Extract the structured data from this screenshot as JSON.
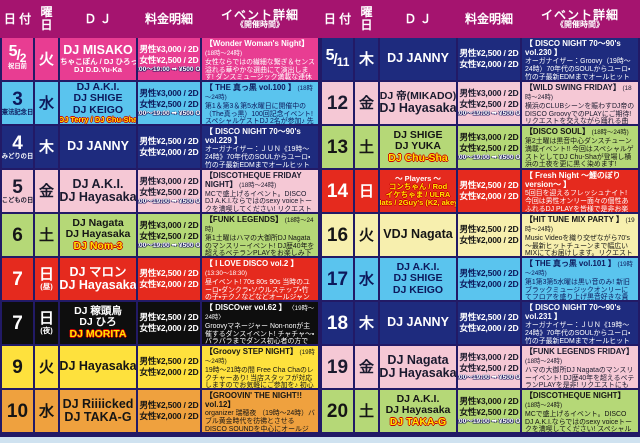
{
  "header": {
    "date": "日 付",
    "day": "曜日",
    "dj": "Ｄ Ｊ",
    "fee": "料金明細",
    "event": "イベント詳細",
    "event_sub": "《開催時間》"
  },
  "themes": {
    "pink": {
      "bg": "#e83d92",
      "fg": "#ffffff"
    },
    "blue": {
      "bg": "#5ac4ee",
      "fg": "#0d195c"
    },
    "navy": {
      "bg": "#1e2b7e",
      "fg": "#ffffff"
    },
    "lightpink": {
      "bg": "#f5c8d5",
      "fg": "#1a1a2e"
    },
    "green": {
      "bg": "#b5d877",
      "fg": "#151515"
    },
    "red": {
      "bg": "#e52a1e",
      "fg": "#ffffff"
    },
    "black": {
      "bg": "#0e0e0e",
      "fg": "#ffffff"
    },
    "yellow": {
      "bg": "#fee13d",
      "fg": "#151515"
    },
    "orange": {
      "bg": "#efa13e",
      "fg": "#151515"
    },
    "cream": {
      "bg": "#f7efae",
      "fg": "#151515"
    }
  },
  "tables": [
    {
      "side": "left",
      "rows": [
        {
          "theme": "pink",
          "date": {
            "num": "5",
            "num2": "2",
            "label": "祝日前"
          },
          "day": {
            "char": "火",
            "note": ""
          },
          "djs": [
            {
              "text": "DJ MISAKO",
              "size": "lg",
              "hl": false
            },
            {
              "text": "DJちゃこぼん / DJ ひろっち",
              "size": "sm",
              "hl": false
            },
            {
              "text": "DJ D.D.Yu-Ka",
              "size": "sm",
              "hl": false
            }
          ],
          "fee": {
            "male": "男性¥3,000 / 2D",
            "female": "女性¥2,500 / 2D",
            "off": "18:00～19:00 ➡ ¥500 OFF"
          },
          "event": {
            "title": "【Wonder Woman's Night】",
            "time": "(18時～24時)",
            "body": "女性ならではの繊細な繋ぎ＆センス溢れる華やかな選曲にて演出します! ダンスミュージック満載な連休前夜を皆様で是非お楽しみ下さい♪"
          }
        },
        {
          "theme": "blue",
          "date": {
            "num": "3",
            "num2": "",
            "label": "憲法記念日"
          },
          "day": {
            "char": "水",
            "note": ""
          },
          "djs": [
            {
              "text": "DJ A.K.I.",
              "size": "md",
              "hl": false
            },
            {
              "text": "DJ SHIGE",
              "size": "md",
              "hl": false
            },
            {
              "text": "DJ KEIGO",
              "size": "md",
              "hl": false
            },
            {
              "text": "DJ Terry / DJ Chu-Sha",
              "size": "sm",
              "hl": true
            }
          ],
          "fee": {
            "male": "男性¥3,000 / 2D",
            "female": "女性¥2,500 / 2D",
            "off": "18:00～19:00 ➡ ¥500 OFF"
          },
          "event": {
            "title": "【 THE 真っ黒 vol.100 】",
            "time": "(18時～24時)",
            "body": "第1＆第3＆第5水曜日に開催中の（The真っ黒）100回記念イベント! スペシャルゲストDJ 2名が参加♪ 先着順Special限定Mix CDプレゼントあり!"
          }
        },
        {
          "theme": "navy",
          "date": {
            "num": "4",
            "num2": "",
            "label": "みどりの日"
          },
          "day": {
            "char": "木",
            "note": ""
          },
          "djs": [
            {
              "text": "DJ JANNY",
              "size": "lg",
              "hl": false
            }
          ],
          "fee": {
            "male": "男性¥2,500 / 2D",
            "female": "女性¥2,000 / 2D",
            "off": ""
          },
          "event": {
            "title": "【 DISCO NIGHT 70～90's vol.229 】",
            "time": "",
            "body": "オーガナイザー：ＪＵＮ《19時～24時》70年代のSOULからユーロ・竹の子最新EDMまでオールヒットメドレー!"
          }
        },
        {
          "theme": "lightpink",
          "date": {
            "num": "5",
            "num2": "",
            "label": "こどもの日"
          },
          "day": {
            "char": "金",
            "note": ""
          },
          "djs": [
            {
              "text": "DJ A.K.I.",
              "size": "lg",
              "hl": false
            },
            {
              "text": "DJ Hayasaka",
              "size": "lg",
              "hl": false
            }
          ],
          "fee": {
            "male": "男性¥3,000 / 2D",
            "female": "女性¥2,500 / 2D",
            "off": "18:00～19:00 ➡ ¥500 OFF"
          },
          "event": {
            "title": "【DISCOTHEQUE FRIDAY NIGHT】",
            "time": "(18時～24時)",
            "body": "MCで盛上げるイベント。DISCO DJ A.K.I.ならではのsexy voiceトークを満喫してください! リクエストにも出来る限りお応えいたします♪"
          }
        },
        {
          "theme": "green",
          "date": {
            "num": "6",
            "num2": "",
            "label": ""
          },
          "day": {
            "char": "土",
            "note": ""
          },
          "djs": [
            {
              "text": "DJ Nagata",
              "size": "md",
              "hl": false
            },
            {
              "text": "DJ Hayasaka",
              "size": "md",
              "hl": false
            },
            {
              "text": "DJ Nom-3",
              "size": "md",
              "hl": true
            }
          ],
          "fee": {
            "male": "男性¥3,000 / 2D",
            "female": "女性¥2,500 / 2D",
            "off": "18:00～19:00 ➡ ¥500 OFF"
          },
          "event": {
            "title": "【FUNK LEGENDS】",
            "time": "(18時～24時)",
            "body": "第1土曜はハマの大御所DJ Nagataのマンスリーイベント! DJ歴40年を超えるベテランPLAYをお楽しみ下さい! 今回はゲストDJとしてDJ Nom-3が登場です♪♪"
          }
        },
        {
          "theme": "red",
          "date": {
            "num": "7",
            "num2": "",
            "label": ""
          },
          "day": {
            "char": "日",
            "note": "(昼)"
          },
          "djs": [
            {
              "text": "DJ マロン",
              "size": "lg",
              "hl": false
            },
            {
              "text": "DJ Hayasaka",
              "size": "lg",
              "hl": false
            }
          ],
          "fee": {
            "male": "男性¥2,500 / 2D",
            "female": "女性¥2,000 / 2D",
            "off": ""
          },
          "event": {
            "title": "【 I LOVE DISCO vol.2 】",
            "time": "(13:30～18:30)",
            "body": "昼イベント! 70s 80s 90s 当時のユーロ・ダンクラ・ソウルステップ・竹の子・テクノなどなどオールジャンルで選曲していきます!"
          }
        },
        {
          "theme": "black",
          "date": {
            "num": "7",
            "num2": "",
            "label": ""
          },
          "day": {
            "char": "日",
            "note": "(夜)"
          },
          "djs": [
            {
              "text": "DJ 稼頭烏",
              "size": "md",
              "hl": false
            },
            {
              "text": "DJ ひろ",
              "size": "md",
              "hl": false
            },
            {
              "text": "DJ MORITA",
              "size": "md",
              "hl": true
            }
          ],
          "fee": {
            "male": "男性¥2,500 / 2D",
            "female": "女性¥2,000 / 2D",
            "off": ""
          },
          "event": {
            "title": "【 DISCOver vol.62 】",
            "time": "〈19時～24時〉",
            "body": "Groovyマネージャー Non-nonが主催するダンスイベント! チャチャ～・パラパラまでダンス初心者の方でも楽しめます♬ 先着順MIX CDプレゼントあり!"
          }
        },
        {
          "theme": "yellow",
          "date": {
            "num": "9",
            "num2": "",
            "label": ""
          },
          "day": {
            "char": "火",
            "note": ""
          },
          "djs": [
            {
              "text": "DJ Hayasaka",
              "size": "lg",
              "hl": false
            }
          ],
          "fee": {
            "male": "男性¥2,500 / 2D",
            "female": "女性¥2,000 / 2D",
            "off": ""
          },
          "event": {
            "title": "【Groovy STEP NIGHT】",
            "time": "(19時～24時)",
            "body": "19時～21時の間 Free Cha Chaのレクチャーあり! 当店スタッフが対応しますのでお気軽にご参加を♪ 初心者・おひとりさま大歓迎です!"
          }
        },
        {
          "theme": "orange",
          "date": {
            "num": "10",
            "num2": "",
            "label": ""
          },
          "day": {
            "char": "水",
            "note": ""
          },
          "djs": [
            {
              "text": "DJ Riiiicked",
              "size": "lg",
              "hl": false
            },
            {
              "text": "DJ TAKA-G",
              "size": "lg",
              "hl": false
            }
          ],
          "fee": {
            "male": "男性¥2,500 / 2D",
            "female": "女性¥2,000 / 2D",
            "off": ""
          },
          "event": {
            "title": "【GROOVIN' THE NIGHT!! vol.12】",
            "time": "",
            "body": "organizer 瑞穂夜 （19時～24時）バブル黄金時代を彷彿とさせるDISCO SOUNDを中心にオールジャンルでお届けします。あの懐かしい夜をもう一度!!"
          }
        }
      ]
    },
    {
      "side": "right",
      "rows": [
        {
          "theme": "navy",
          "date": {
            "num": "5",
            "num2": "11",
            "label": ""
          },
          "day": {
            "char": "木",
            "note": ""
          },
          "djs": [
            {
              "text": "DJ JANNY",
              "size": "lg",
              "hl": false
            }
          ],
          "fee": {
            "male": "男性¥2,500 / 2D",
            "female": "女性¥2,000 / 2D",
            "off": ""
          },
          "event": {
            "title": "【 DISCO NIGHT 70～90's vol.230 】",
            "time": "",
            "body": "オーガナイザー：Groovy（19時～24時）70年代のSOULからユーロ・竹の子最新EDMまでオールヒットメドレー!"
          }
        },
        {
          "theme": "lightpink",
          "date": {
            "num": "12",
            "num2": "",
            "label": ""
          },
          "day": {
            "char": "金",
            "note": ""
          },
          "djs": [
            {
              "text": "DJ 帝(MIKADO)",
              "size": "md",
              "hl": false
            },
            {
              "text": "DJ Hayasaka",
              "size": "lg",
              "hl": false
            }
          ],
          "fee": {
            "male": "男性¥3,000 / 2D",
            "female": "女性¥2,500 / 2D",
            "off": "18:00～19:00 ➡ ¥500 OFF"
          },
          "event": {
            "title": "【WILD SWING FRIDAY】",
            "time": "(18時～24時)",
            "body": "横浜のCLUBシーンを賑わすDJ帝のDISCO GroovyでのPLAYにご期待! リクエストを交えながら踊れる曲を幅広くお贈りします♪"
          }
        },
        {
          "theme": "green",
          "date": {
            "num": "13",
            "num2": "",
            "label": ""
          },
          "day": {
            "char": "土",
            "note": ""
          },
          "djs": [
            {
              "text": "DJ SHIGE",
              "size": "md",
              "hl": false
            },
            {
              "text": "DJ YUKA",
              "size": "md",
              "hl": false
            },
            {
              "text": "DJ Chu-Sha",
              "size": "md",
              "hl": true
            }
          ],
          "fee": {
            "male": "男性¥3,000 / 2D",
            "female": "女性¥2,500 / 2D",
            "off": "18:00～19:00 ➡ ¥500 OFF"
          },
          "event": {
            "title": "【DISCO SOUL】",
            "time": "(18時～24時)",
            "body": "第2土曜は黒音中心ダンスチューン満載イベント!! 今回はスペシャルゲストとしてDJ Chu-Shaが登場し横浜の土夜を更に黒く染めます!"
          }
        },
        {
          "theme": "red",
          "date": {
            "num": "14",
            "num2": "",
            "label": ""
          },
          "day": {
            "char": "日",
            "note": ""
          },
          "djs": [
            {
              "text": "～ Players ～",
              "size": "sm",
              "hl": false
            },
            {
              "text": "コンちゃん / Rod",
              "size": "sm",
              "hl": true
            },
            {
              "text": "イケちゃま / ULRA",
              "size": "sm",
              "hl": true
            },
            {
              "text": "Mats / 2Guy's (K2, akey)",
              "size": "sm",
              "hl": true
            }
          ],
          "fee": {
            "male": "男性¥2,500 / 2D",
            "female": "女性¥2,000 / 2D",
            "off": ""
          },
          "event": {
            "title": "【 Fresh Night ～鯉のぼりversion～ 】",
            "time": "",
            "body": "5回目を迎えるフレッシュナイト! 今回は男性オンリー面々の個性あふれるDJ PLAYを皆様で是非お楽しみください♬《18時～23時》"
          }
        },
        {
          "theme": "cream",
          "date": {
            "num": "16",
            "num2": "",
            "label": ""
          },
          "day": {
            "char": "火",
            "note": ""
          },
          "djs": [
            {
              "text": "VDJ Nagata",
              "size": "lg",
              "hl": false
            }
          ],
          "fee": {
            "male": "男性¥2,500 / 2D",
            "female": "女性¥2,000 / 2D",
            "off": ""
          },
          "event": {
            "title": "【HIT TUNE MIX PARTY 】",
            "time": "(19時～24時)",
            "body": "Music Videoを織り交ぜながら70's～最新ヒットチューンまで幅広いMIXにてお届けします。リクエストもお気軽にVDJまでどうぞ♪"
          }
        },
        {
          "theme": "blue",
          "date": {
            "num": "17",
            "num2": "",
            "label": ""
          },
          "day": {
            "char": "水",
            "note": ""
          },
          "djs": [
            {
              "text": "DJ A.K.I.",
              "size": "md",
              "hl": false
            },
            {
              "text": "DJ SHIGE",
              "size": "md",
              "hl": false
            },
            {
              "text": "DJ KEIGO",
              "size": "md",
              "hl": false
            }
          ],
          "fee": {
            "male": "男性¥2,500 / 2D",
            "female": "女性¥2,000 / 2D",
            "off": ""
          },
          "event": {
            "title": "【 THE 真っ黒 vol.101 】",
            "time": "(19時～24時)",
            "body": "第1第3第5水曜は黒い音のみ! 新旧ブラックミュージックオンリーにてフロアを盛り上げ黒音好きな貴方を躍らせます!"
          }
        },
        {
          "theme": "navy",
          "date": {
            "num": "18",
            "num2": "",
            "label": ""
          },
          "day": {
            "char": "木",
            "note": ""
          },
          "djs": [
            {
              "text": "DJ JANNY",
              "size": "lg",
              "hl": false
            }
          ],
          "fee": {
            "male": "男性¥2,500 / 2D",
            "female": "女性¥2,000 / 2D",
            "off": ""
          },
          "event": {
            "title": "【 DISCO NIGHT 70～90's vol.231 】",
            "time": "",
            "body": "オーガナイザー：ＪＵＮ《19時～24時》70年代のSOULからユーロ・竹の子最新EDMまでオールヒットメドレー!"
          }
        },
        {
          "theme": "lightpink",
          "date": {
            "num": "19",
            "num2": "",
            "label": ""
          },
          "day": {
            "char": "金",
            "note": ""
          },
          "djs": [
            {
              "text": "DJ Nagata",
              "size": "lg",
              "hl": false
            },
            {
              "text": "DJ Hayasaka",
              "size": "lg",
              "hl": false
            }
          ],
          "fee": {
            "male": "男性¥3,000 / 2D",
            "female": "女性¥2,500 / 2D",
            "off": "18:00～19:00 ➡ ¥500 OFF"
          },
          "event": {
            "title": "【FUNK LEGENDS FRIDAY】",
            "time": "(18時～24時)",
            "body": "ハマの大御所DJ Nagataのマンスリーイベント! DJ歴40年を超えるベテランPLAYを是非! リクエストにも出来る限りお応え致します♬"
          }
        },
        {
          "theme": "green",
          "date": {
            "num": "20",
            "num2": "",
            "label": ""
          },
          "day": {
            "char": "土",
            "note": ""
          },
          "djs": [
            {
              "text": "DJ A.K.I.",
              "size": "md",
              "hl": false
            },
            {
              "text": "DJ Hayasaka",
              "size": "md",
              "hl": false
            },
            {
              "text": "DJ TAKA-G",
              "size": "md",
              "hl": true
            }
          ],
          "fee": {
            "male": "男性¥3,000 / 2D",
            "female": "女性¥2,500 / 2D",
            "off": "18:00～19:00 ➡ ¥500 OFF"
          },
          "event": {
            "title": "【DISCOTHEQUE NIGHT】",
            "time": "(18時～24時)",
            "body": "MCで盛上げるイベント。DISCO DJ A.K.I.ならではのsexy voiceトークを満喫してください! スペシャルゲストとしてDJ TAKA-Gが登場です♬"
          }
        }
      ]
    }
  ]
}
